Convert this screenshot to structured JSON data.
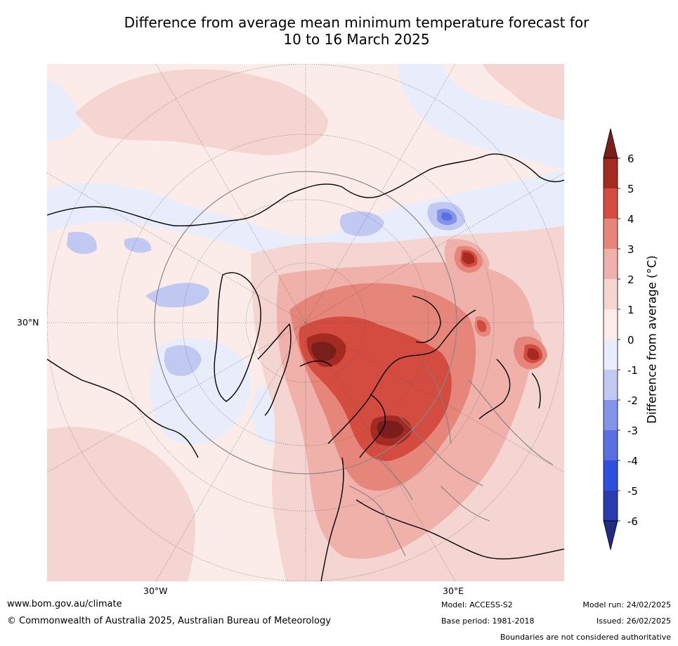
{
  "title": {
    "line1": "Difference from average mean minimum temperature forecast for",
    "line2": "10 to 16 March 2025"
  },
  "map": {
    "projection": "north-polar-stereographic",
    "lat_labels": [
      "30°N"
    ],
    "lon_labels": [
      "30°W",
      "30°E"
    ],
    "boundaries_color": "#808080",
    "coastline_color": "#000000"
  },
  "colorbar": {
    "label": "Difference from average (°C)",
    "ticks": [
      "6",
      "5",
      "4",
      "3",
      "2",
      "1",
      "0",
      "-1",
      "-2",
      "-3",
      "-4",
      "-5",
      "-6"
    ],
    "bands_top_to_bottom": [
      "#a52a22",
      "#d44c3f",
      "#e6867b",
      "#efb1aa",
      "#f5d5d1",
      "#fbecea",
      "#e9ecfb",
      "#c1c9f2",
      "#8294ea",
      "#5a70e0",
      "#2f4fde",
      "#2a3bb0"
    ],
    "over_color": "#7a1e1c",
    "under_color": "#1f2c80"
  },
  "footer": {
    "url": "www.bom.gov.au/climate",
    "copyright": "© Commonwealth of Australia 2025, Australian Bureau of Meteorology",
    "model": "Model: ACCESS-S2",
    "base_period": "Base period: 1981-2018",
    "model_run": "Model run: 24/02/2025",
    "issued": "Issued: 26/02/2025",
    "disclaimer": "Boundaries are not considered authoritative"
  }
}
